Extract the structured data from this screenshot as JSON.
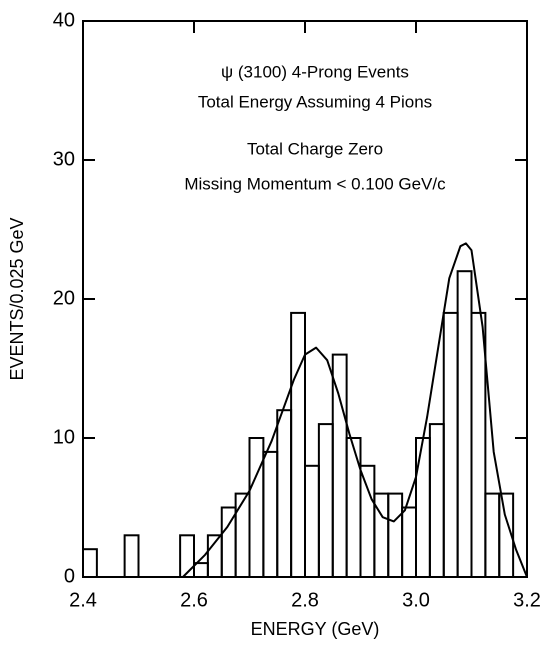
{
  "chart_data": {
    "type": "histogram",
    "annotations": [
      "ψ (3100) 4-Prong Events",
      "Total Energy Assuming 4 Pions",
      "Total Charge Zero",
      "Missing Momentum < 0.100 GeV/c"
    ],
    "xlabel": "ENERGY (GeV)",
    "ylabel": "EVENTS/0.025 GeV",
    "bins": [
      2.4,
      2.425,
      2.45,
      2.475,
      2.5,
      2.525,
      2.55,
      2.575,
      2.6,
      2.625,
      2.65,
      2.675,
      2.7,
      2.725,
      2.75,
      2.775,
      2.8,
      2.825,
      2.85,
      2.875,
      2.9,
      2.925,
      2.95,
      2.975,
      3,
      3.025,
      3.05,
      3.075,
      3.1,
      3.125,
      3.15,
      3.175,
      3.2
    ],
    "values": [
      2,
      0,
      0,
      3,
      0,
      0,
      0,
      3,
      1,
      3,
      5,
      6,
      10,
      9,
      12,
      19,
      8,
      11,
      16,
      10,
      8,
      6,
      6,
      5,
      10,
      11,
      19,
      22,
      19,
      6,
      6,
      0
    ],
    "color": "#000000",
    "fit": {
      "x": [
        2.58,
        2.62,
        2.66,
        2.7,
        2.74,
        2.78,
        2.8,
        2.82,
        2.84,
        2.86,
        2.88,
        2.9,
        2.92,
        2.94,
        2.96,
        2.98,
        3,
        3.02,
        3.04,
        3.06,
        3.08,
        3.09,
        3.1,
        3.12,
        3.14,
        3.16,
        3.18,
        3.2
      ],
      "values": [
        0,
        1.6,
        3.6,
        6.2,
        9.8,
        14.2,
        16,
        16.5,
        15.6,
        13.2,
        10.3,
        7.7,
        5.6,
        4.3,
        4,
        4.8,
        7.2,
        11.5,
        16.5,
        21.5,
        23.8,
        24,
        23.5,
        18,
        9,
        4.5,
        2,
        0
      ]
    },
    "xlim": [
      2.4,
      3.2
    ],
    "xticks": [
      2.4,
      2.6,
      2.8,
      {
        "value": 3,
        "label": "3.0"
      },
      3.2
    ],
    "ylim": [
      0,
      40
    ],
    "yticks": [
      0,
      10,
      20,
      30,
      40
    ]
  }
}
